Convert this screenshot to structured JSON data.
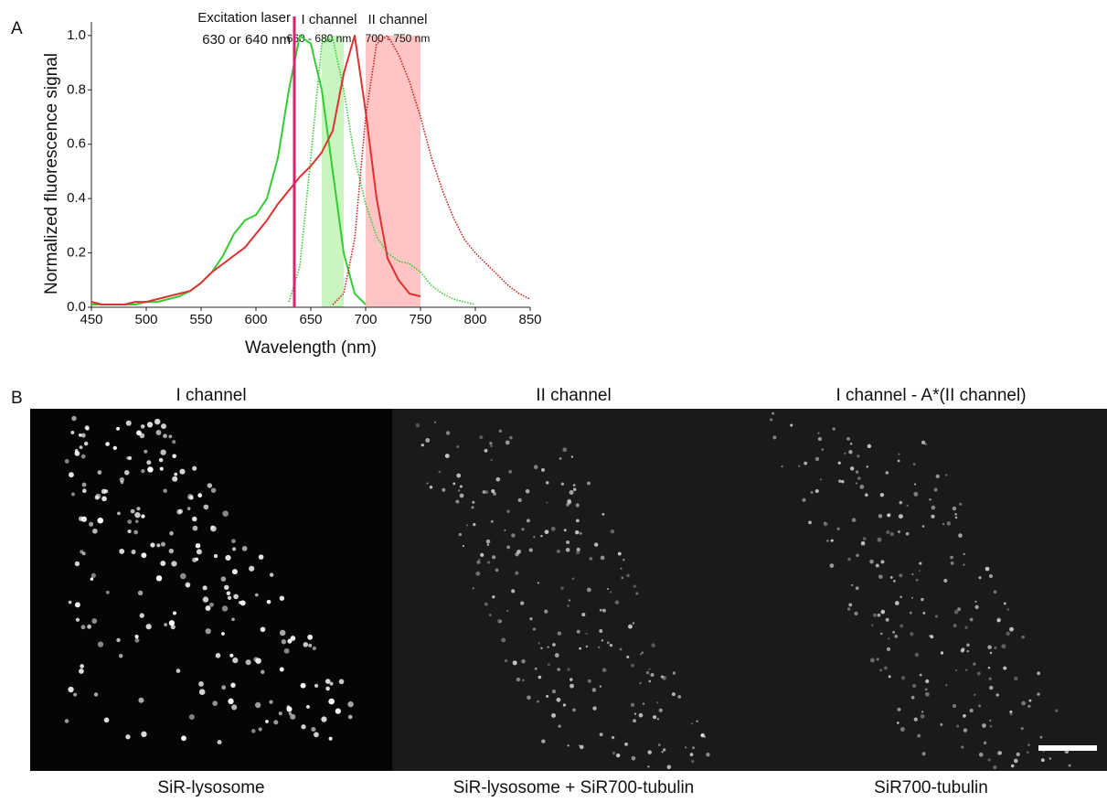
{
  "chart_data": {
    "type": "line",
    "panel_label": "A",
    "xlabel": "Wavelength (nm)",
    "ylabel": "Normalized fluorescence signal",
    "x": [
      450,
      460,
      470,
      480,
      490,
      500,
      510,
      520,
      530,
      540,
      550,
      560,
      570,
      580,
      590,
      600,
      610,
      620,
      630,
      640,
      650,
      660,
      670,
      680,
      690,
      700,
      710,
      720,
      730,
      740,
      750,
      760,
      770,
      780,
      790,
      800,
      810,
      820,
      830,
      840,
      850
    ],
    "series": [
      {
        "color": "#33cc33",
        "style": "solid",
        "values": [
          0.01,
          0.01,
          0.01,
          0.01,
          0.01,
          0.02,
          0.02,
          0.03,
          0.04,
          0.06,
          0.09,
          0.13,
          0.19,
          0.27,
          0.32,
          0.34,
          0.4,
          0.55,
          0.8,
          1.0,
          0.97,
          0.8,
          0.5,
          0.2,
          0.05,
          0.01,
          null,
          null,
          null,
          null,
          null,
          null,
          null,
          null,
          null,
          null,
          null,
          null,
          null,
          null,
          null
        ]
      },
      {
        "color": "#33cc33",
        "style": "dotted",
        "values": [
          null,
          null,
          null,
          null,
          null,
          null,
          null,
          null,
          null,
          null,
          null,
          null,
          null,
          null,
          null,
          null,
          null,
          null,
          0.02,
          0.15,
          0.55,
          0.97,
          0.99,
          0.8,
          0.55,
          0.38,
          0.26,
          0.2,
          0.17,
          0.16,
          0.13,
          0.08,
          0.05,
          0.03,
          0.02,
          0.01,
          null,
          null,
          null,
          null,
          null
        ]
      },
      {
        "color": "#e03030",
        "style": "solid",
        "values": [
          0.02,
          0.01,
          0.01,
          0.01,
          0.02,
          0.02,
          0.03,
          0.04,
          0.05,
          0.06,
          0.09,
          0.13,
          0.16,
          0.19,
          0.22,
          0.27,
          0.32,
          0.38,
          0.43,
          0.48,
          0.52,
          0.57,
          0.65,
          0.86,
          1.0,
          0.72,
          0.4,
          0.18,
          0.1,
          0.05,
          0.04,
          null,
          null,
          null,
          null,
          null,
          null,
          null,
          null,
          null,
          null
        ]
      },
      {
        "color": "#d02020",
        "style": "dotted",
        "values": [
          null,
          null,
          null,
          null,
          null,
          null,
          null,
          null,
          null,
          null,
          null,
          null,
          null,
          null,
          null,
          null,
          null,
          null,
          null,
          null,
          null,
          null,
          0.01,
          0.05,
          0.25,
          0.7,
          0.97,
          1.0,
          0.93,
          0.83,
          0.7,
          0.55,
          0.43,
          0.33,
          0.25,
          0.2,
          0.16,
          0.12,
          0.08,
          0.05,
          0.03
        ]
      }
    ],
    "bands": [
      {
        "label": "I channel",
        "sublabel": "660 - 680 nm",
        "range": [
          660,
          680
        ],
        "color": "#c8f5c0"
      },
      {
        "label": "II channel",
        "sublabel": "700 - 750 nm",
        "range": [
          700,
          750
        ],
        "color": "#ffc4c4"
      }
    ],
    "laser": {
      "label": "Excitation laser",
      "sublabel": "630 or 640 nm",
      "value": 635,
      "color": "#d6246e"
    },
    "xlim": [
      450,
      850
    ],
    "ylim": [
      0,
      1.05
    ],
    "xticks": [
      450,
      500,
      550,
      600,
      650,
      700,
      750,
      800,
      850
    ],
    "yticks": [
      {
        "value": 0,
        "label": "0.0"
      },
      0.2,
      0.4,
      0.6,
      0.8,
      {
        "value": 1,
        "label": "1.0"
      }
    ]
  },
  "panel_b": {
    "label": "B",
    "images": [
      {
        "title": "I channel",
        "caption": "SiR-lysosome"
      },
      {
        "title": "II channel",
        "caption": "SiR-lysosome + SiR700-tubulin"
      },
      {
        "title": "I channel - A*(II channel)",
        "caption": "SiR700-tubulin"
      }
    ]
  }
}
